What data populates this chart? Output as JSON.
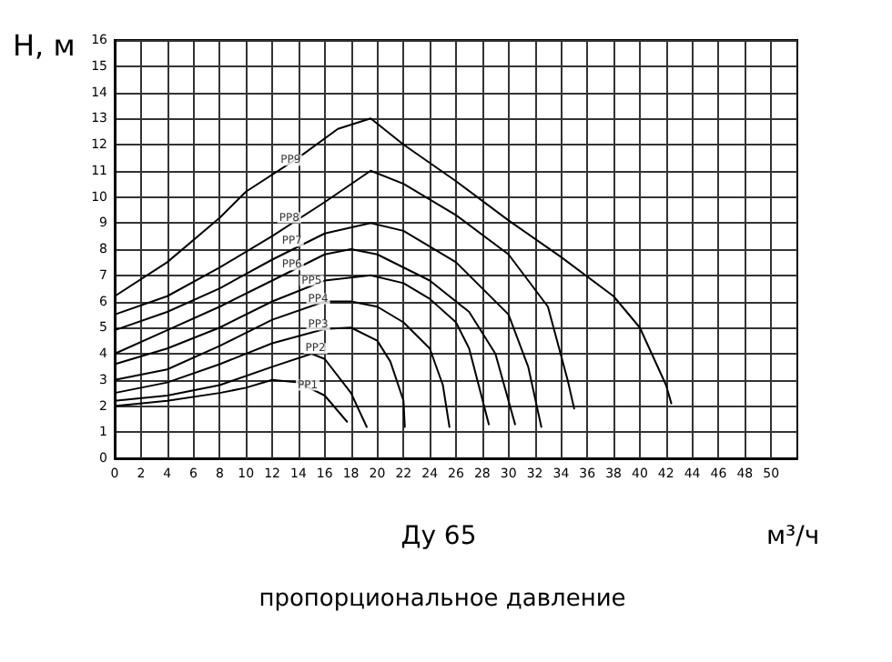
{
  "chart_data": {
    "type": "line",
    "title": "Ду 65",
    "subtitle": "пропорциональное давление",
    "xlabel": "м³/ч",
    "ylabel": "Н, м",
    "xlim": [
      0,
      52
    ],
    "xticks": [
      0,
      2,
      4,
      6,
      8,
      10,
      12,
      14,
      16,
      18,
      20,
      22,
      24,
      26,
      28,
      30,
      32,
      34,
      36,
      38,
      40,
      42,
      44,
      46,
      48,
      50
    ],
    "ylim": [
      0,
      16
    ],
    "yticks": [
      0,
      1,
      2,
      3,
      4,
      5,
      6,
      7,
      8,
      9,
      10,
      11,
      12,
      13,
      14,
      15,
      16
    ],
    "grid": true,
    "marker": "none",
    "line_style": "solid",
    "series": [
      {
        "color": "#000000",
        "x": [
          0,
          4,
          8,
          10,
          12,
          14,
          16,
          17.7
        ],
        "values": [
          2.0,
          2.2,
          2.5,
          2.7,
          3.0,
          2.9,
          2.4,
          1.4
        ]
      },
      {
        "color": "#000000",
        "x": [
          0,
          4,
          8,
          12,
          15,
          16,
          18,
          19.2
        ],
        "values": [
          2.2,
          2.4,
          2.8,
          3.5,
          4.0,
          3.8,
          2.5,
          1.2
        ]
      },
      {
        "color": "#000000",
        "x": [
          0,
          4,
          8,
          12,
          16,
          18,
          20,
          21,
          22,
          22.1
        ],
        "values": [
          2.5,
          2.9,
          3.6,
          4.4,
          4.95,
          5.0,
          4.5,
          3.7,
          2.2,
          1.2
        ]
      },
      {
        "color": "#000000",
        "x": [
          0,
          4,
          8,
          12,
          16,
          18,
          20,
          22,
          24,
          25,
          25.5
        ],
        "values": [
          3.0,
          3.4,
          4.3,
          5.3,
          6.0,
          6.0,
          5.8,
          5.2,
          4.2,
          2.8,
          1.2
        ]
      },
      {
        "color": "#000000",
        "x": [
          0,
          4,
          8,
          12,
          16,
          19.5,
          22,
          24,
          26,
          27,
          28.5
        ],
        "values": [
          3.6,
          4.2,
          5.0,
          6.0,
          6.8,
          7.0,
          6.7,
          6.1,
          5.2,
          4.2,
          1.3
        ]
      },
      {
        "color": "#000000",
        "x": [
          0,
          4,
          8,
          12,
          16,
          18,
          20,
          24,
          27,
          29,
          30.5
        ],
        "values": [
          4.0,
          4.9,
          5.8,
          6.8,
          7.8,
          8.0,
          7.8,
          6.8,
          5.6,
          4.0,
          1.3
        ]
      },
      {
        "color": "#000000",
        "x": [
          0,
          4,
          8,
          12,
          16,
          19.5,
          22,
          26,
          30,
          31.5,
          32.5
        ],
        "values": [
          4.9,
          5.6,
          6.5,
          7.6,
          8.6,
          9.0,
          8.7,
          7.5,
          5.5,
          3.5,
          1.2
        ]
      },
      {
        "color": "#000000",
        "x": [
          0,
          4,
          8,
          12,
          16,
          19.5,
          22,
          26,
          30,
          33,
          34.5,
          35
        ],
        "values": [
          5.5,
          6.2,
          7.3,
          8.5,
          9.8,
          11.0,
          10.5,
          9.3,
          7.8,
          5.8,
          3.0,
          1.9
        ]
      },
      {
        "color": "#000000",
        "x": [
          0,
          4,
          8,
          10,
          14,
          17,
          19.5,
          22,
          26,
          30,
          34,
          38,
          40,
          42,
          42.4
        ],
        "values": [
          6.2,
          7.5,
          9.2,
          10.2,
          11.5,
          12.6,
          13.0,
          12.0,
          10.6,
          9.1,
          7.7,
          6.2,
          5.0,
          2.8,
          2.1
        ]
      }
    ],
    "annotations": [
      {
        "text": "PP1",
        "x": 14.7,
        "y": 2.8
      },
      {
        "text": "PP2",
        "x": 15.3,
        "y": 4.2
      },
      {
        "text": "PP3",
        "x": 15.5,
        "y": 5.1
      },
      {
        "text": "PP4",
        "x": 15.5,
        "y": 6.1
      },
      {
        "text": "PP5",
        "x": 15,
        "y": 6.8
      },
      {
        "text": "PP6",
        "x": 13.5,
        "y": 7.4
      },
      {
        "text": "PP7",
        "x": 13.5,
        "y": 8.3
      },
      {
        "text": "PP8",
        "x": 13.3,
        "y": 9.2
      },
      {
        "text": "PP9",
        "x": 13.4,
        "y": 11.4
      }
    ]
  }
}
